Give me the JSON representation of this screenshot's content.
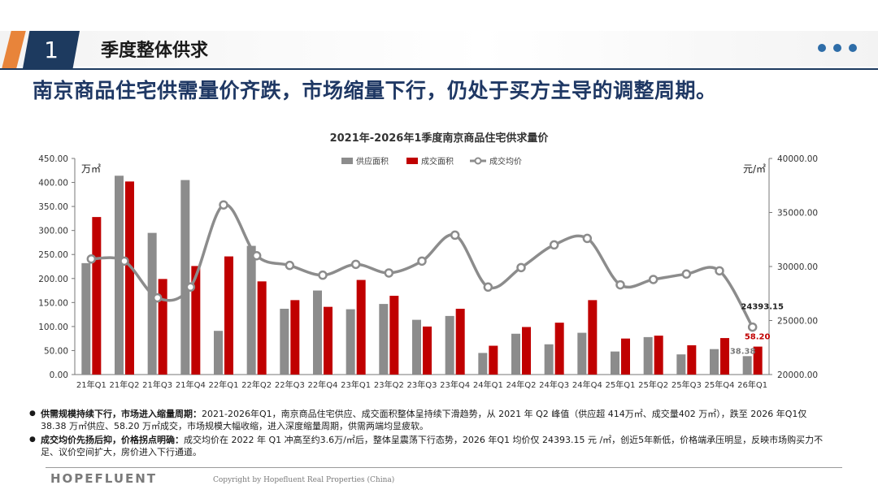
{
  "section": {
    "number": "1",
    "title": "季度整体供求"
  },
  "headline": "南京商品住宅供需量价齐跌，市场缩量下行，仍处于买方主导的调整周期。",
  "chart_data": {
    "type": "bar",
    "title": "2021年-2026年1季度南京商品住宅供求量价",
    "left_unit": "万㎡",
    "right_unit": "元/㎡",
    "categories": [
      "21年Q1",
      "21年Q2",
      "21年Q3",
      "21年Q4",
      "22年Q1",
      "22年Q2",
      "22年Q3",
      "22年Q4",
      "23年Q1",
      "23年Q2",
      "23年Q3",
      "23年Q4",
      "24年Q1",
      "24年Q2",
      "24年Q3",
      "24年Q4",
      "25年Q1",
      "25年Q2",
      "25年Q3",
      "25年Q4",
      "26年Q1"
    ],
    "left_ylim": [
      0,
      450
    ],
    "left_ticks": [
      "0.00",
      "50.00",
      "100.00",
      "150.00",
      "200.00",
      "250.00",
      "300.00",
      "350.00",
      "400.00",
      "450.00"
    ],
    "right_ylim": [
      20000,
      40000
    ],
    "right_ticks": [
      "20000.00",
      "25000.00",
      "30000.00",
      "35000.00",
      "40000.00"
    ],
    "legend_position": "top-center",
    "series": [
      {
        "name": "供应面积",
        "type": "bar",
        "color": "#8c8c8c",
        "values": [
          232,
          414,
          295,
          405,
          91,
          268,
          137,
          175,
          136,
          147,
          114,
          122,
          45,
          85,
          63,
          87,
          48,
          78,
          42,
          53,
          38.38
        ]
      },
      {
        "name": "成交面积",
        "type": "bar",
        "color": "#c00000",
        "values": [
          328,
          402,
          199,
          226,
          246,
          194,
          155,
          141,
          197,
          164,
          100,
          137,
          60,
          99,
          108,
          155,
          75,
          81,
          61,
          76,
          58.2
        ]
      },
      {
        "name": "成交均价",
        "type": "line",
        "color": "#8c8c8c",
        "values": [
          30700,
          30500,
          27100,
          28100,
          35700,
          31000,
          30100,
          29200,
          30200,
          29400,
          30500,
          32900,
          28100,
          29900,
          32000,
          32600,
          28300,
          28800,
          29300,
          29600,
          24393.15
        ]
      }
    ],
    "data_labels": {
      "supply_last": "38.38",
      "deal_last": "58.20",
      "price_last": "24393.15"
    }
  },
  "bullets": [
    {
      "bold": "供需规模持续下行，市场进入缩量周期：",
      "text": "2021-2026年Q1，南京商品住宅供应、成交面积整体呈持续下滑趋势，从 2021 年 Q2 峰值（供应超 414万㎡、成交量402 万㎡），跌至 2026 年Q1仅 38.38 万㎡供应、58.20 万㎡成交，市场规模大幅收缩，进入深度缩量周期，供需两端均显疲软。"
    },
    {
      "bold": "成交均价先扬后抑，价格拐点明确：",
      "text": "成交均价在 2022 年 Q1 冲高至约3.6万/㎡后，整体呈震荡下行态势，2026 年Q1 均价仅 24393.15 元 /㎡，创近5年新低，价格端承压明显，反映市场购买力不足、议价空间扩大，房价进入下行通道。"
    }
  ],
  "footer": {
    "logo": "HOPEFLUENT",
    "copyright": "Copyright by Hopefluent Real Properties (China)"
  }
}
